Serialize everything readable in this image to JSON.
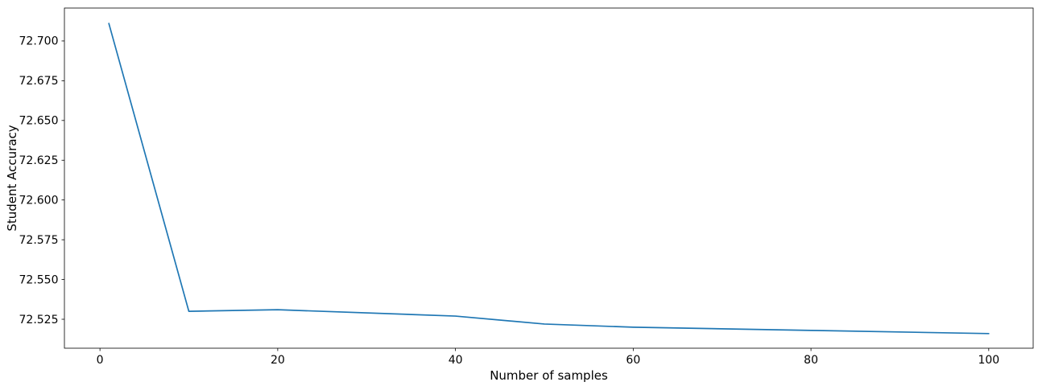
{
  "chart_data": {
    "type": "line",
    "title": "",
    "xlabel": "Number of samples",
    "ylabel": "Student Accuracy",
    "x": [
      1,
      10,
      20,
      40,
      50,
      60,
      80,
      100
    ],
    "y": [
      72.711,
      72.53,
      72.531,
      72.527,
      72.522,
      72.52,
      72.518,
      72.516
    ],
    "xticks": [
      0,
      20,
      40,
      60,
      80,
      100
    ],
    "yticks": [
      72.525,
      72.55,
      72.575,
      72.6,
      72.625,
      72.65,
      72.675,
      72.7
    ],
    "ytick_labels": [
      "72.525",
      "72.550",
      "72.575",
      "72.600",
      "72.625",
      "72.650",
      "72.675",
      "72.700"
    ],
    "xlim": [
      -4,
      105
    ],
    "ylim": [
      72.5068,
      72.7207
    ],
    "line_color": "#1f77b4",
    "axis_color": "#000000",
    "background_color": "#ffffff",
    "grid": false,
    "legend": null
  }
}
